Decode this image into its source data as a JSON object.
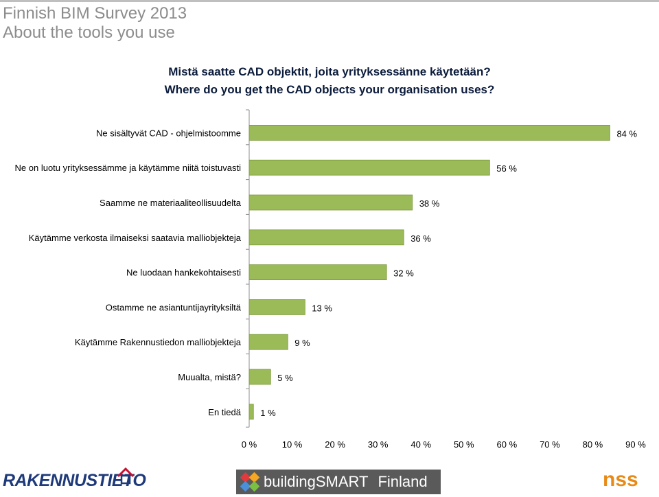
{
  "slide": {
    "title_line1": "Finnish BIM Survey 2013",
    "title_line2": "About the tools you use"
  },
  "chart_data": {
    "type": "bar",
    "orientation": "horizontal",
    "title": "Mistä saatte CAD objektit, joita yrityksessänne käytetään?",
    "subtitle": "Where do you get the CAD objects your organisation uses?",
    "categories": [
      "Ne sisältyvät CAD - ohjelmistoomme",
      "Ne on luotu yrityksessämme ja käytämme niitä toistuvasti",
      "Saamme ne materiaaliteollisuudelta",
      "Käytämme verkosta ilmaiseksi saatavia malliobjekteja",
      "Ne luodaan hankekohtaisesti",
      "Ostamme ne asiantuntijayrityksiltä",
      "Käytämme Rakennustiedon malliobjekteja",
      "Muualta, mistä?",
      "En tiedä"
    ],
    "values": [
      84,
      56,
      38,
      36,
      32,
      13,
      9,
      5,
      1
    ],
    "data_labels": [
      "84 %",
      "56 %",
      "38 %",
      "36 %",
      "32 %",
      "13 %",
      "9 %",
      "5 %",
      "1 %"
    ],
    "xlim": [
      0,
      90
    ],
    "x_ticks": [
      "0 %",
      "10 %",
      "20 %",
      "30 %",
      "40 %",
      "50 %",
      "60 %",
      "70 %",
      "80 %",
      "90 %"
    ],
    "grid": false,
    "bar_color": "#9bbb59",
    "bar_border_color": "#7a9a3b"
  },
  "footer": {
    "logo_left": "RAKENNUSTIETO",
    "logo_center_1": "buildingSMART",
    "logo_center_2": "Finland",
    "logo_right": "nss"
  }
}
